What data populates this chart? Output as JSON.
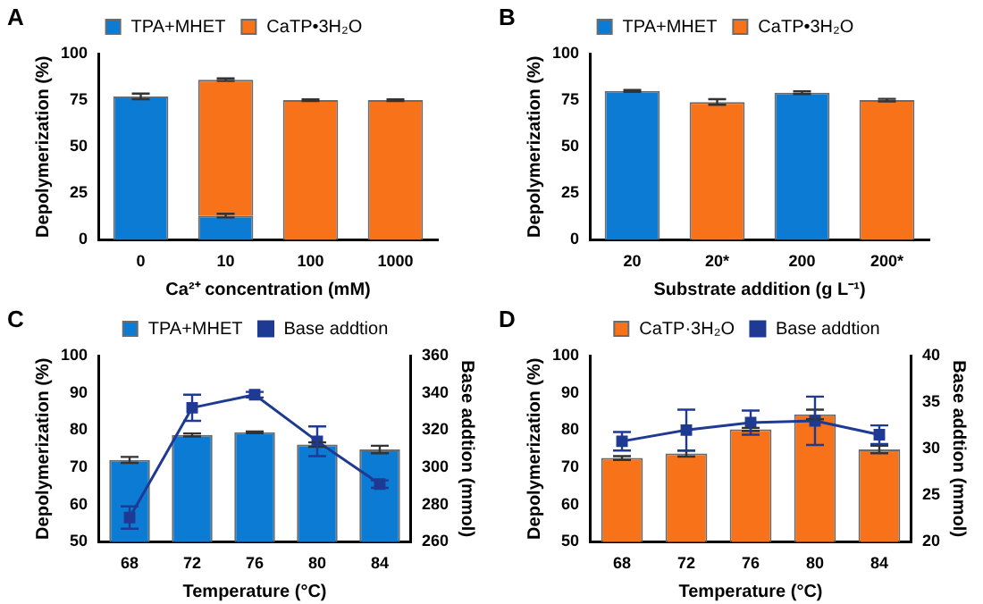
{
  "chart_data": [
    {
      "type": "bar",
      "annotations": [
        "A"
      ],
      "xlabel": "Ca²⁺ concentration (mM)",
      "ylabel": "Depolymerization (%)",
      "categories": [
        "0",
        "10",
        "100",
        "1000"
      ],
      "stacked": true,
      "ylim": [
        0,
        100
      ],
      "yticks": [
        0,
        25,
        50,
        75,
        100
      ],
      "grid": false,
      "legend": "top",
      "series": [
        {
          "name": "TPA+MHET",
          "color": "#0b7bd4",
          "values": [
            77,
            13,
            null,
            null
          ],
          "errors": [
            1.5,
            1,
            null,
            null
          ]
        },
        {
          "name": "CaTP•3H₂O",
          "color": "#f87219",
          "values": [
            null,
            73,
            75,
            75
          ],
          "errors": [
            null,
            0.7,
            0.4,
            0.4
          ]
        }
      ]
    },
    {
      "type": "bar",
      "annotations": [
        "B"
      ],
      "xlabel": "Substrate addition (g L⁻¹)",
      "ylabel": "Depolymerization (%)",
      "categories": [
        "20",
        "20*",
        "200",
        "200*"
      ],
      "stacked": true,
      "ylim": [
        0,
        100
      ],
      "yticks": [
        0,
        25,
        50,
        75,
        100
      ],
      "grid": false,
      "legend": "top",
      "series": [
        {
          "name": "TPA+MHET",
          "color": "#0b7bd4",
          "values": [
            80,
            null,
            79,
            null
          ],
          "errors": [
            0.5,
            null,
            0.7,
            null
          ]
        },
        {
          "name": "CaTP•3H₂O",
          "color": "#f87219",
          "values": [
            null,
            74,
            null,
            75
          ],
          "errors": [
            null,
            1.5,
            null,
            0.7
          ]
        }
      ]
    },
    {
      "type": "bar",
      "annotations": [
        "C"
      ],
      "xlabel": "Temperature (°C)",
      "ylabel": "Depolymerization (%)",
      "y2label": "Base addtion (mmol)",
      "categories": [
        "68",
        "72",
        "76",
        "80",
        "84"
      ],
      "ylim": [
        50,
        100
      ],
      "yticks": [
        50,
        60,
        70,
        80,
        90,
        100
      ],
      "y2lim": [
        260,
        360
      ],
      "y2ticks": [
        260,
        280,
        300,
        320,
        340,
        360
      ],
      "grid": false,
      "legend": "top",
      "series": [
        {
          "name": "TPA+MHET",
          "type": "bar",
          "color": "#0b7bd4",
          "values": [
            72,
            78.7,
            79.4,
            76.1,
            74.8
          ],
          "errors": [
            0.8,
            0.4,
            0.2,
            0.6,
            1
          ]
        },
        {
          "name": "Base addtion",
          "type": "line",
          "axis": "y2",
          "marker": "square",
          "color": "#1f3a93",
          "values": [
            273,
            332,
            339,
            314,
            291
          ],
          "errors": [
            6,
            7,
            1.5,
            8,
            2
          ]
        }
      ]
    },
    {
      "type": "bar",
      "annotations": [
        "D"
      ],
      "xlabel": "Temperature (°C)",
      "ylabel": "Depolymerization (%)",
      "y2label": "Base addtion (mmol)",
      "categories": [
        "68",
        "72",
        "76",
        "80",
        "84"
      ],
      "ylim": [
        50,
        100
      ],
      "yticks": [
        50,
        60,
        70,
        80,
        90,
        100
      ],
      "y2lim": [
        20,
        40
      ],
      "y2ticks": [
        20,
        25,
        30,
        35,
        40
      ],
      "grid": false,
      "legend": "top",
      "series": [
        {
          "name": "CaTP·3H₂O",
          "type": "bar",
          "color": "#f87219",
          "values": [
            72.5,
            73.7,
            80.2,
            84.2,
            74.8
          ],
          "errors": [
            0.5,
            0.8,
            0.4,
            1.3,
            1
          ]
        },
        {
          "name": "Base addtion",
          "type": "line",
          "axis": "y2",
          "marker": "square",
          "color": "#1f3a93",
          "values": [
            30.8,
            32,
            32.8,
            33,
            31.5
          ],
          "errors": [
            1,
            2.2,
            1.3,
            2.6,
            1
          ]
        }
      ]
    }
  ]
}
